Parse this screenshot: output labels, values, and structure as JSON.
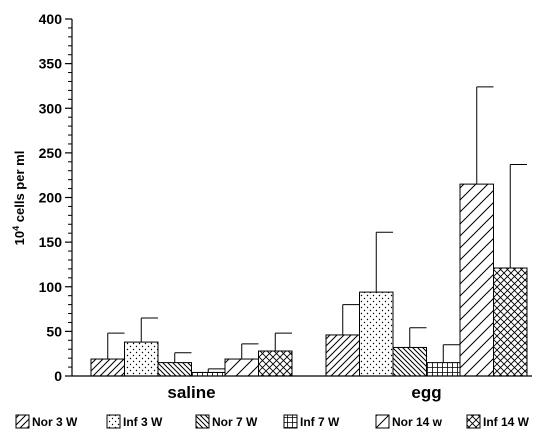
{
  "chart_data": {
    "type": "bar",
    "title": "",
    "xlabel": "",
    "ylabel": {
      "base": "10",
      "exponent": "4",
      "rest": " cells per ml"
    },
    "ylim": [
      0,
      400
    ],
    "yticks": [
      0,
      50,
      100,
      150,
      200,
      250,
      300,
      350,
      400
    ],
    "ytick_labels": [
      "0",
      "50",
      "100",
      "150",
      "200",
      "250",
      "300",
      "350",
      "400"
    ],
    "categories": [
      "saline",
      "egg"
    ],
    "legend_position": "bottom",
    "grid": false,
    "series": [
      {
        "name": "Nor 3 W",
        "pattern": "diag-forward",
        "values": [
          19,
          46
        ],
        "errors": [
          29,
          34
        ]
      },
      {
        "name": "Inf 3 W",
        "pattern": "dots",
        "values": [
          38,
          94
        ],
        "errors": [
          27,
          67
        ]
      },
      {
        "name": "Nor 7 W",
        "pattern": "diag-back-dense",
        "values": [
          15,
          32
        ],
        "errors": [
          11,
          22
        ]
      },
      {
        "name": "Inf 7 W",
        "pattern": "grid-vertical",
        "values": [
          4,
          15
        ],
        "errors": [
          4,
          20
        ]
      },
      {
        "name": "Nor 14 w",
        "pattern": "diag-forward-sparse",
        "values": [
          19,
          215
        ],
        "errors": [
          17,
          109
        ]
      },
      {
        "name": "Inf 14 W",
        "pattern": "crosshatch",
        "values": [
          28,
          121
        ],
        "errors": [
          20,
          116
        ]
      }
    ]
  }
}
